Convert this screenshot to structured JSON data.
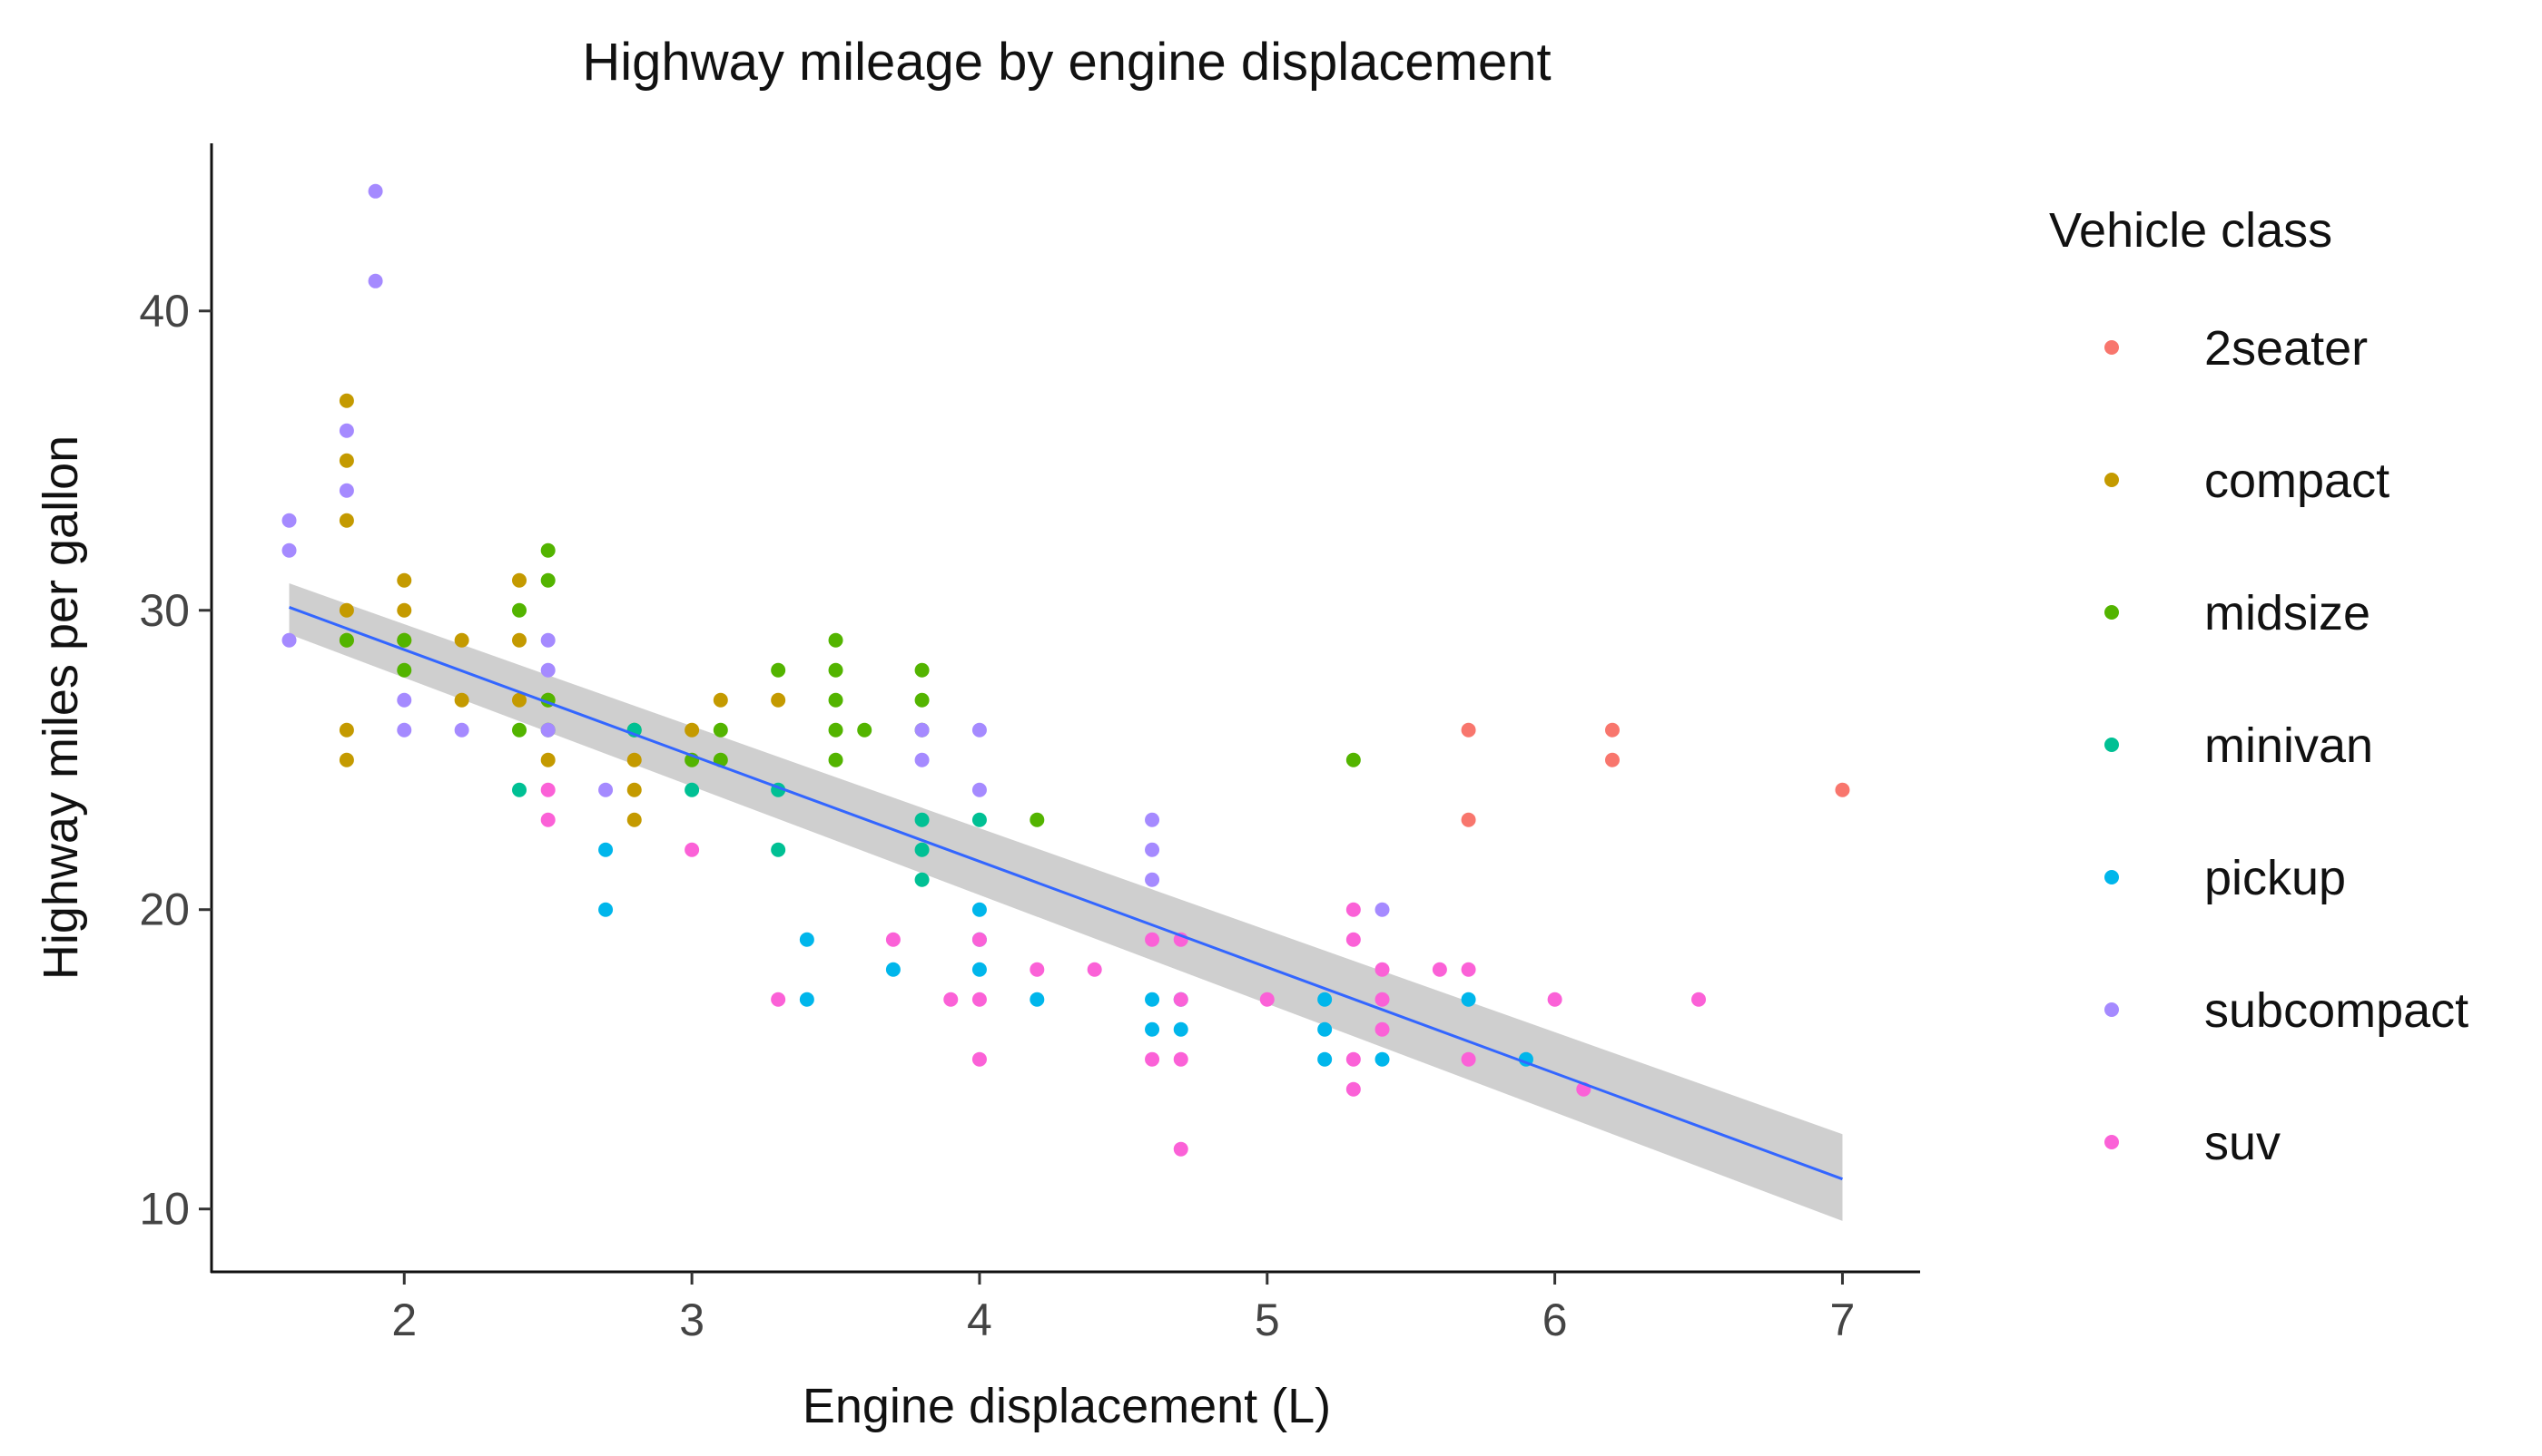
{
  "chart_data": {
    "type": "scatter",
    "title": "Highway mileage by engine displacement",
    "xlabel": "Engine displacement (L)",
    "ylabel": "Highway miles per gallon",
    "xlim": [
      1.33,
      7.27
    ],
    "ylim": [
      7.9,
      45.6
    ],
    "xticks": [
      2,
      3,
      4,
      5,
      6,
      7
    ],
    "yticks": [
      10,
      20,
      30,
      40
    ],
    "grid": false,
    "legend": {
      "title": "Vehicle class",
      "position": "right"
    },
    "trend": {
      "type": "linear",
      "x": [
        1.6,
        7.0
      ],
      "y": [
        30.1,
        11.0
      ],
      "ci_upper": [
        30.9,
        12.5
      ],
      "ci_lower": [
        29.2,
        9.6
      ],
      "color": "#3366FF",
      "band_color": "#CCCCCC"
    },
    "series": [
      {
        "name": "2seater",
        "color": "#F8766D",
        "points": [
          [
            5.7,
            26
          ],
          [
            5.7,
            23
          ],
          [
            6.2,
            26
          ],
          [
            6.2,
            25
          ],
          [
            7.0,
            24
          ]
        ]
      },
      {
        "name": "compact",
        "color": "#C49A00",
        "points": [
          [
            1.8,
            37
          ],
          [
            1.8,
            35
          ],
          [
            1.8,
            33
          ],
          [
            1.8,
            30
          ],
          [
            1.8,
            29
          ],
          [
            1.8,
            26
          ],
          [
            1.8,
            25
          ],
          [
            2.0,
            31
          ],
          [
            2.0,
            30
          ],
          [
            2.0,
            29
          ],
          [
            2.2,
            29
          ],
          [
            2.2,
            27
          ],
          [
            2.4,
            31
          ],
          [
            2.4,
            29
          ],
          [
            2.4,
            27
          ],
          [
            2.5,
            27
          ],
          [
            2.5,
            25
          ],
          [
            2.8,
            25
          ],
          [
            2.8,
            24
          ],
          [
            2.8,
            23
          ],
          [
            3.0,
            26
          ],
          [
            3.1,
            27
          ],
          [
            3.3,
            27
          ]
        ]
      },
      {
        "name": "midsize",
        "color": "#53B400",
        "points": [
          [
            1.8,
            29
          ],
          [
            2.0,
            29
          ],
          [
            2.0,
            28
          ],
          [
            2.4,
            30
          ],
          [
            2.4,
            26
          ],
          [
            2.5,
            32
          ],
          [
            2.5,
            31
          ],
          [
            2.5,
            27
          ],
          [
            2.5,
            26
          ],
          [
            2.8,
            26
          ],
          [
            3.0,
            25
          ],
          [
            3.1,
            26
          ],
          [
            3.1,
            25
          ],
          [
            3.3,
            28
          ],
          [
            3.5,
            29
          ],
          [
            3.5,
            28
          ],
          [
            3.5,
            27
          ],
          [
            3.5,
            26
          ],
          [
            3.5,
            25
          ],
          [
            3.6,
            26
          ],
          [
            3.8,
            28
          ],
          [
            3.8,
            27
          ],
          [
            3.8,
            26
          ],
          [
            4.2,
            23
          ],
          [
            5.3,
            25
          ]
        ]
      },
      {
        "name": "minivan",
        "color": "#00C094",
        "points": [
          [
            2.4,
            24
          ],
          [
            2.8,
            26
          ],
          [
            3.0,
            24
          ],
          [
            3.3,
            24
          ],
          [
            3.3,
            22
          ],
          [
            3.8,
            23
          ],
          [
            3.8,
            22
          ],
          [
            3.8,
            21
          ],
          [
            4.0,
            23
          ]
        ]
      },
      {
        "name": "pickup",
        "color": "#00B6EB",
        "points": [
          [
            2.7,
            22
          ],
          [
            2.7,
            20
          ],
          [
            3.4,
            19
          ],
          [
            3.4,
            17
          ],
          [
            3.7,
            18
          ],
          [
            4.0,
            20
          ],
          [
            4.0,
            19
          ],
          [
            4.0,
            18
          ],
          [
            4.2,
            17
          ],
          [
            4.6,
            17
          ],
          [
            4.6,
            16
          ],
          [
            4.7,
            17
          ],
          [
            4.7,
            16
          ],
          [
            5.2,
            17
          ],
          [
            5.2,
            16
          ],
          [
            5.2,
            15
          ],
          [
            5.4,
            15
          ],
          [
            5.7,
            17
          ],
          [
            5.9,
            15
          ]
        ]
      },
      {
        "name": "subcompact",
        "color": "#A58AFF",
        "points": [
          [
            1.6,
            33
          ],
          [
            1.6,
            32
          ],
          [
            1.6,
            29
          ],
          [
            1.8,
            36
          ],
          [
            1.8,
            34
          ],
          [
            1.9,
            44
          ],
          [
            1.9,
            41
          ],
          [
            2.0,
            27
          ],
          [
            2.0,
            26
          ],
          [
            2.2,
            26
          ],
          [
            2.5,
            29
          ],
          [
            2.5,
            28
          ],
          [
            2.5,
            26
          ],
          [
            2.7,
            24
          ],
          [
            3.8,
            26
          ],
          [
            3.8,
            25
          ],
          [
            4.0,
            26
          ],
          [
            4.0,
            24
          ],
          [
            4.6,
            23
          ],
          [
            4.6,
            22
          ],
          [
            4.6,
            21
          ],
          [
            5.4,
            20
          ]
        ]
      },
      {
        "name": "suv",
        "color": "#FB61D7",
        "points": [
          [
            2.5,
            24
          ],
          [
            2.5,
            23
          ],
          [
            3.0,
            22
          ],
          [
            3.3,
            17
          ],
          [
            3.7,
            19
          ],
          [
            3.9,
            17
          ],
          [
            4.0,
            19
          ],
          [
            4.0,
            17
          ],
          [
            4.0,
            15
          ],
          [
            4.2,
            18
          ],
          [
            4.4,
            18
          ],
          [
            4.6,
            19
          ],
          [
            4.6,
            15
          ],
          [
            4.7,
            19
          ],
          [
            4.7,
            17
          ],
          [
            4.7,
            15
          ],
          [
            4.7,
            12
          ],
          [
            5.0,
            17
          ],
          [
            5.3,
            20
          ],
          [
            5.3,
            19
          ],
          [
            5.3,
            15
          ],
          [
            5.3,
            14
          ],
          [
            5.4,
            18
          ],
          [
            5.4,
            17
          ],
          [
            5.4,
            16
          ],
          [
            5.6,
            18
          ],
          [
            5.7,
            18
          ],
          [
            5.7,
            15
          ],
          [
            6.0,
            17
          ],
          [
            6.1,
            14
          ],
          [
            6.5,
            17
          ]
        ]
      }
    ]
  }
}
